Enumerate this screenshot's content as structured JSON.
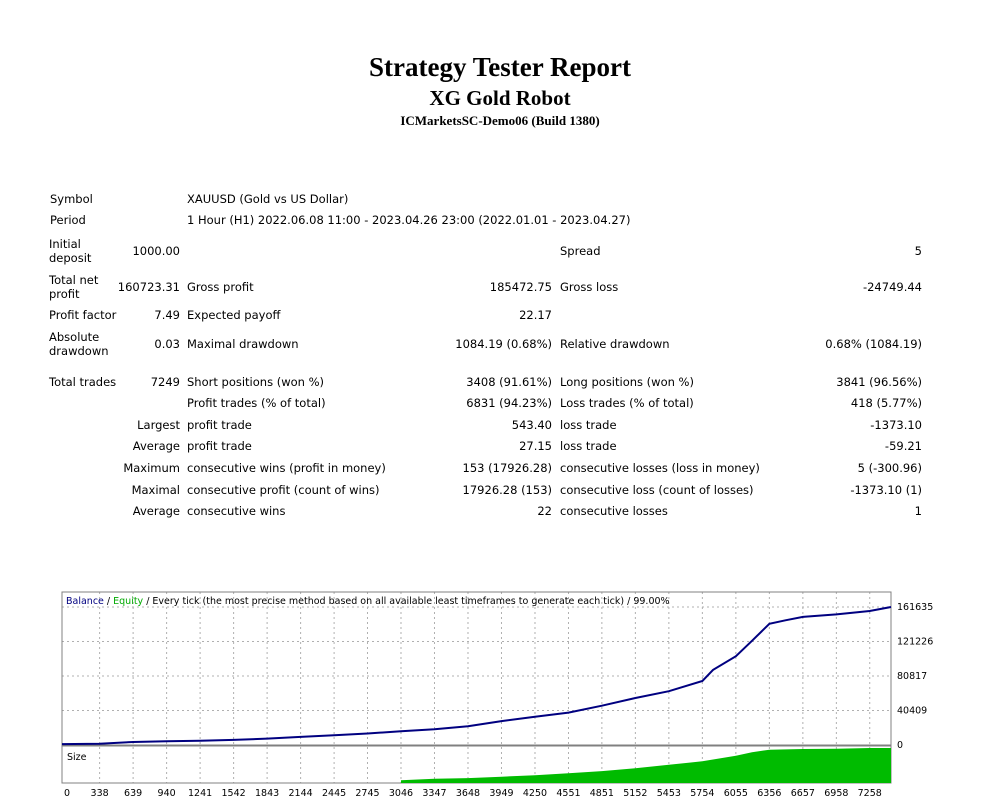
{
  "report": {
    "title": "Strategy Tester Report",
    "robot": "XG Gold Robot",
    "server": "ICMarketsSC-Demo06 (Build 1380)"
  },
  "settings": {
    "symbol_label": "Symbol",
    "symbol_value": "XAUUSD (Gold vs US Dollar)",
    "period_label": "Period",
    "period_value": "1 Hour (H1) 2022.06.08 11:00 - 2023.04.26 23:00 (2022.01.01 - 2023.04.27)"
  },
  "results": {
    "initial_deposit_label_1": "Initial",
    "initial_deposit_label_2": "deposit",
    "initial_deposit": "1000.00",
    "spread_label": "Spread",
    "spread": "5",
    "total_net_profit_label_1": "Total net",
    "total_net_profit_label_2": "profit",
    "total_net_profit": "160723.31",
    "gross_profit_label": "Gross profit",
    "gross_profit": "185472.75",
    "gross_loss_label": "Gross loss",
    "gross_loss": "-24749.44",
    "profit_factor_label": "Profit factor",
    "profit_factor": "7.49",
    "expected_payoff_label": "Expected payoff",
    "expected_payoff": "22.17",
    "absolute_drawdown_label_1": "Absolute",
    "absolute_drawdown_label_2": "drawdown",
    "absolute_drawdown": "0.03",
    "maximal_drawdown_label": "Maximal drawdown",
    "maximal_drawdown": "1084.19 (0.68%)",
    "relative_drawdown_label": "Relative drawdown",
    "relative_drawdown": "0.68% (1084.19)",
    "total_trades_label": "Total trades",
    "total_trades": "7249",
    "short_positions_label": "Short positions (won %)",
    "short_positions": "3408 (91.61%)",
    "long_positions_label": "Long positions (won %)",
    "long_positions": "3841 (96.56%)",
    "profit_trades_label": "Profit trades (% of total)",
    "profit_trades": "6831 (94.23%)",
    "loss_trades_label": "Loss trades (% of total)",
    "loss_trades": "418 (5.77%)",
    "largest_label": "Largest",
    "largest_profit_label": "profit trade",
    "largest_profit": "543.40",
    "largest_loss_label": "loss trade",
    "largest_loss": "-1373.10",
    "average_label": "Average",
    "average_profit_label": "profit trade",
    "average_profit": "27.15",
    "average_loss_label": "loss trade",
    "average_loss": "-59.21",
    "maximum_label": "Maximum",
    "max_cons_wins_label": "consecutive wins (profit in money)",
    "max_cons_wins": "153 (17926.28)",
    "max_cons_losses_label": "consecutive losses (loss in money)",
    "max_cons_losses": "5 (-300.96)",
    "maximal_label": "Maximal",
    "maximal_cons_profit_label": "consecutive profit (count of wins)",
    "maximal_cons_profit": "17926.28 (153)",
    "maximal_cons_loss_label": "consecutive loss (count of losses)",
    "maximal_cons_loss": "-1373.10 (1)",
    "average2_label": "Average",
    "avg_cons_wins_label": "consecutive wins",
    "avg_cons_wins": "22",
    "avg_cons_losses_label": "consecutive losses",
    "avg_cons_losses": "1"
  },
  "chart_data": {
    "type": "line",
    "legend": {
      "balance": "Balance",
      "sep1": " / ",
      "equity": "Equity",
      "rest": " / Every tick (the most precise method based on all available least timeframes to generate each tick) / 99.00%"
    },
    "size_label": "Size",
    "y_ticks": [
      "161635",
      "121226",
      "80817",
      "40409",
      "0"
    ],
    "y_tick_values": [
      161635,
      121226,
      80817,
      40409,
      0
    ],
    "x_ticks": [
      "0",
      "338",
      "639",
      "940",
      "1241",
      "1542",
      "1843",
      "2144",
      "2445",
      "2745",
      "3046",
      "3347",
      "3648",
      "3949",
      "4250",
      "4551",
      "4851",
      "5152",
      "5453",
      "5754",
      "6055",
      "6356",
      "6657",
      "6958",
      "7258"
    ],
    "x_tick_values": [
      0,
      338,
      639,
      940,
      1241,
      1542,
      1843,
      2144,
      2445,
      2745,
      3046,
      3347,
      3648,
      3949,
      4250,
      4551,
      4851,
      5152,
      5453,
      5754,
      6055,
      6356,
      6657,
      6958,
      7258
    ],
    "xlim": [
      0,
      7449
    ],
    "ylim": [
      0,
      161635
    ],
    "colors": {
      "balance": "#000080",
      "equity": "#00aa00",
      "size": "#00bb00",
      "grid": "#b0b0b0"
    },
    "series": [
      {
        "name": "Balance",
        "x": [
          0,
          338,
          639,
          940,
          1241,
          1542,
          1843,
          2144,
          2445,
          2745,
          3046,
          3347,
          3648,
          3949,
          4250,
          4551,
          4851,
          5152,
          5453,
          5754,
          5850,
          6055,
          6200,
          6356,
          6500,
          6657,
          6958,
          7258,
          7449
        ],
        "y": [
          1000,
          1500,
          3500,
          4500,
          5000,
          6000,
          7500,
          9500,
          11500,
          13500,
          16000,
          18500,
          22000,
          28000,
          33000,
          38000,
          46000,
          55000,
          63000,
          75000,
          88000,
          104000,
          122000,
          142000,
          146000,
          150000,
          153000,
          157000,
          161635
        ]
      }
    ],
    "size_series": {
      "x": [
        3046,
        3347,
        3648,
        3949,
        4250,
        4551,
        4851,
        5152,
        5453,
        5754,
        6055,
        6200,
        6356,
        6657,
        6958,
        7258,
        7449
      ],
      "y": [
        0.08,
        0.12,
        0.14,
        0.18,
        0.22,
        0.28,
        0.34,
        0.42,
        0.52,
        0.62,
        0.78,
        0.88,
        0.95,
        0.97,
        0.98,
        1.0,
        1.0
      ]
    }
  }
}
